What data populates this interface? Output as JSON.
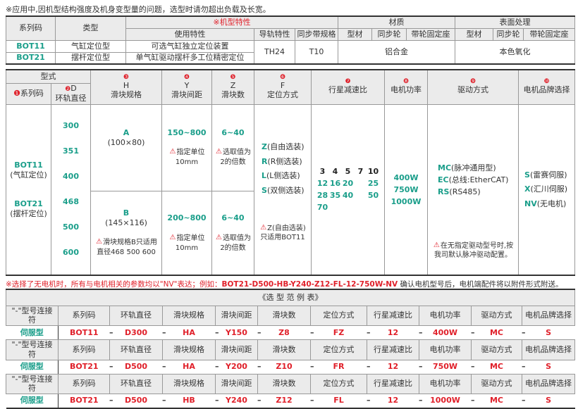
{
  "top_note": "※应用中,因机型结构强度及机身变型量的问题，选型时请勿超出负载及长宽。",
  "spec": {
    "h_series": "系列码",
    "h_type": "类型",
    "h_features": "※机型特性",
    "h_material": "材质",
    "h_surface": "表面处理",
    "h_usage": "使用特性",
    "h_rail": "导轨特性",
    "h_belt": "同步带规格",
    "h_profile": "型材",
    "h_pulley": "同步轮",
    "h_seat": "带轮固定座",
    "rows": [
      {
        "code": "BOT11",
        "type": "气缸定位型",
        "usage": "可选气缸独立定位装置"
      },
      {
        "code": "BOT21",
        "type": "摆杆定位型",
        "usage": "单气缸驱动摆杆多工位精密定位"
      }
    ],
    "rail": "TH24",
    "belt": "T10",
    "material": "铝合金",
    "surface": "本色氧化"
  },
  "sel": {
    "h_form": "型式",
    "cols": [
      {
        "n": "❶",
        "t": "系列码"
      },
      {
        "n": "❷",
        "t": "D",
        "t2": "环轨直径"
      },
      {
        "n": "❸",
        "t": "H",
        "t2": "滑块规格"
      },
      {
        "n": "❹",
        "t": "Y",
        "t2": "滑块间距"
      },
      {
        "n": "❺",
        "t": "Z",
        "t2": "滑块数"
      },
      {
        "n": "❻",
        "t": "F",
        "t2": "定位方式"
      },
      {
        "n": "❼",
        "t2": "行星减速比"
      },
      {
        "n": "❽",
        "t2": "电机功率"
      },
      {
        "n": "❾",
        "t2": "驱动方式"
      },
      {
        "n": "❿",
        "t2": "电机品牌选择"
      }
    ],
    "series": [
      {
        "code": "BOT11",
        "desc": "(气缸定位)"
      },
      {
        "code": "BOT21",
        "desc": "(摆杆定位)"
      }
    ],
    "diameters": [
      "300",
      "351",
      "400",
      "468",
      "500",
      "600"
    ],
    "blocks": [
      {
        "h": "A",
        "size": "(100×80)",
        "y": "150~800",
        "y_note": "指定单位 10mm",
        "z": "6~40",
        "z_note": "选取值为 2的倍数"
      },
      {
        "h": "B",
        "size": "(145×116)",
        "h_note": "滑块规格B只适用 直径468 500 600",
        "y": "200~800",
        "y_note": "指定单位 10mm",
        "z": "6~40",
        "z_note": "选取值为 2的倍数"
      }
    ],
    "positioning": [
      {
        "c": "Z",
        "d": "(自由选装)"
      },
      {
        "c": "R",
        "d": "(R侧选装)"
      },
      {
        "c": "L",
        "d": "(L侧选装)"
      },
      {
        "c": "S",
        "d": "(双侧选装)"
      }
    ],
    "positioning_note": "Z(自由选装) 只适用BOT11",
    "ratios_black": [
      "3",
      "4",
      "5",
      "7",
      "10"
    ],
    "ratios_green": [
      "12",
      "16",
      "20",
      "25",
      "28",
      "35",
      "40",
      "50",
      "70"
    ],
    "power": [
      "400W",
      "750W",
      "1000W"
    ],
    "drive": [
      {
        "c": "MC",
        "d": "(脉冲通用型)"
      },
      {
        "c": "EC",
        "d": "(总线:EtherCAT)"
      },
      {
        "c": "RS",
        "d": "(RS485)"
      }
    ],
    "drive_note": "在无指定驱动型号时,按 我司默认脉冲驱动配置。",
    "brand": [
      {
        "c": "S",
        "d": "(雷赛伺服)"
      },
      {
        "c": "X",
        "d": "(汇川伺服)"
      },
      {
        "c": "NV",
        "d": "(无电机)"
      }
    ]
  },
  "nv_note": {
    "a": "※选择了无电机时，所有与电机相关的参数均以\"NV\"表达；例如：",
    "example": "BOT21-D500-HB-Y240-Z12-FL-12-750W-NV",
    "b": " 确认电机型号后，电机端配件将以附件形式附送。"
  },
  "examples": {
    "title": "《选 型 范 例 表》",
    "headers": [
      "\"-\"型号连接符",
      "系列码",
      "环轨直径",
      "滑块规格",
      "滑块间距",
      "滑块数",
      "定位方式",
      "行星减速比",
      "电机功率",
      "驱动方式",
      "电机品牌选择"
    ],
    "rows": [
      [
        "伺服型",
        "BOT11",
        "D300",
        "HA",
        "Y150",
        "Z8",
        "FZ",
        "12",
        "400W",
        "MC",
        "S"
      ],
      [
        "伺服型",
        "BOT21",
        "D500",
        "HA",
        "Y200",
        "Z10",
        "FR",
        "12",
        "750W",
        "MC",
        "S"
      ],
      [
        "伺服型",
        "BOT21",
        "D500",
        "HB",
        "Y240",
        "Z12",
        "FL",
        "12",
        "1000W",
        "MC",
        "S"
      ]
    ],
    "dash": "–"
  },
  "colors": {
    "accent_green": "#1a9e8a",
    "accent_red": "#e0202a",
    "header_bg": "#ebebeb"
  }
}
